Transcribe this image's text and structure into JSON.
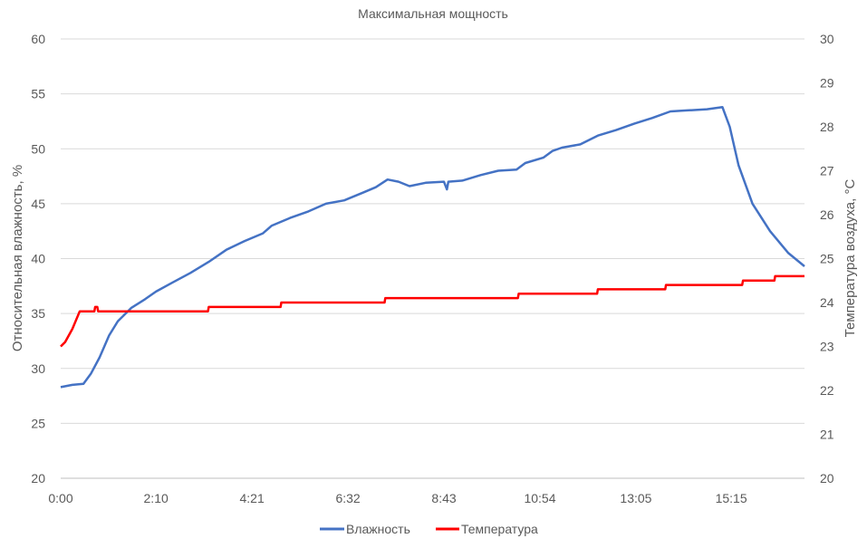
{
  "chart_data": {
    "type": "line",
    "title": "Максимальная мощность",
    "ylabel": "Относительная влажность, %",
    "y2label": "Температура воздуха, °C",
    "xlabel": "",
    "ylim": [
      20,
      60
    ],
    "y2lim": [
      20,
      30
    ],
    "xlim": [
      "0:00",
      "16:55"
    ],
    "yticks": [
      "20",
      "25",
      "30",
      "35",
      "40",
      "45",
      "50",
      "55",
      "60"
    ],
    "y2ticks": [
      "20",
      "21",
      "22",
      "23",
      "24",
      "25",
      "26",
      "27",
      "28",
      "29",
      "30"
    ],
    "xticks": [
      "0:00",
      "2:10",
      "4:21",
      "6:32",
      "8:43",
      "10:54",
      "13:05",
      "15:15"
    ],
    "grid": "horizontal",
    "legend": "bottom",
    "series": [
      {
        "name": "Влажность",
        "axis": "left",
        "color": "#4472C4",
        "x": [
          "0:00",
          "0:16",
          "0:31",
          "0:41",
          "0:53",
          "1:06",
          "1:18",
          "1:36",
          "1:55",
          "2:10",
          "2:32",
          "2:57",
          "3:22",
          "3:46",
          "4:11",
          "4:36",
          "4:48",
          "5:13",
          "5:38",
          "6:02",
          "6:27",
          "6:52",
          "7:10",
          "7:26",
          "7:41",
          "7:56",
          "8:18",
          "8:43",
          "8:47",
          "8:49",
          "9:08",
          "9:33",
          "9:57",
          "10:22",
          "10:34",
          "10:59",
          "11:11",
          "11:24",
          "11:49",
          "12:13",
          "12:38",
          "13:03",
          "13:27",
          "13:52",
          "14:17",
          "14:42",
          "15:03",
          "15:13",
          "15:25",
          "15:44",
          "16:08",
          "16:33",
          "16:55"
        ],
        "values": [
          28.3,
          28.5,
          28.6,
          29.5,
          31,
          33,
          34.3,
          35.5,
          36.3,
          37,
          37.8,
          38.7,
          39.7,
          40.8,
          41.6,
          42.3,
          43,
          43.7,
          44.3,
          45,
          45.3,
          46,
          46.5,
          47.2,
          47,
          46.6,
          46.9,
          47,
          46.3,
          47,
          47.1,
          47.6,
          48,
          48.1,
          48.7,
          49.2,
          49.8,
          50.1,
          50.4,
          51.2,
          51.7,
          52.3,
          52.8,
          53.4,
          53.5,
          53.6,
          53.8,
          52,
          48.5,
          45,
          42.5,
          40.5,
          39.3
        ]
      },
      {
        "name": "Температура",
        "axis": "right",
        "color": "#FF0000",
        "x": [
          "0:00",
          "0:06",
          "0:16",
          "0:26",
          "0:46",
          "0:47",
          "0:50",
          "0:51",
          "3:21",
          "3:22",
          "5:00",
          "5:01",
          "7:22",
          "7:23",
          "10:24",
          "10:25",
          "12:12",
          "12:13",
          "13:45",
          "13:46",
          "15:30",
          "15:31",
          "16:14",
          "16:15",
          "16:55"
        ],
        "values": [
          23.0,
          23.1,
          23.4,
          23.8,
          23.8,
          23.9,
          23.9,
          23.8,
          23.8,
          23.9,
          23.9,
          24.0,
          24.0,
          24.1,
          24.1,
          24.2,
          24.2,
          24.3,
          24.3,
          24.4,
          24.4,
          24.5,
          24.5,
          24.6,
          24.6
        ]
      }
    ]
  }
}
